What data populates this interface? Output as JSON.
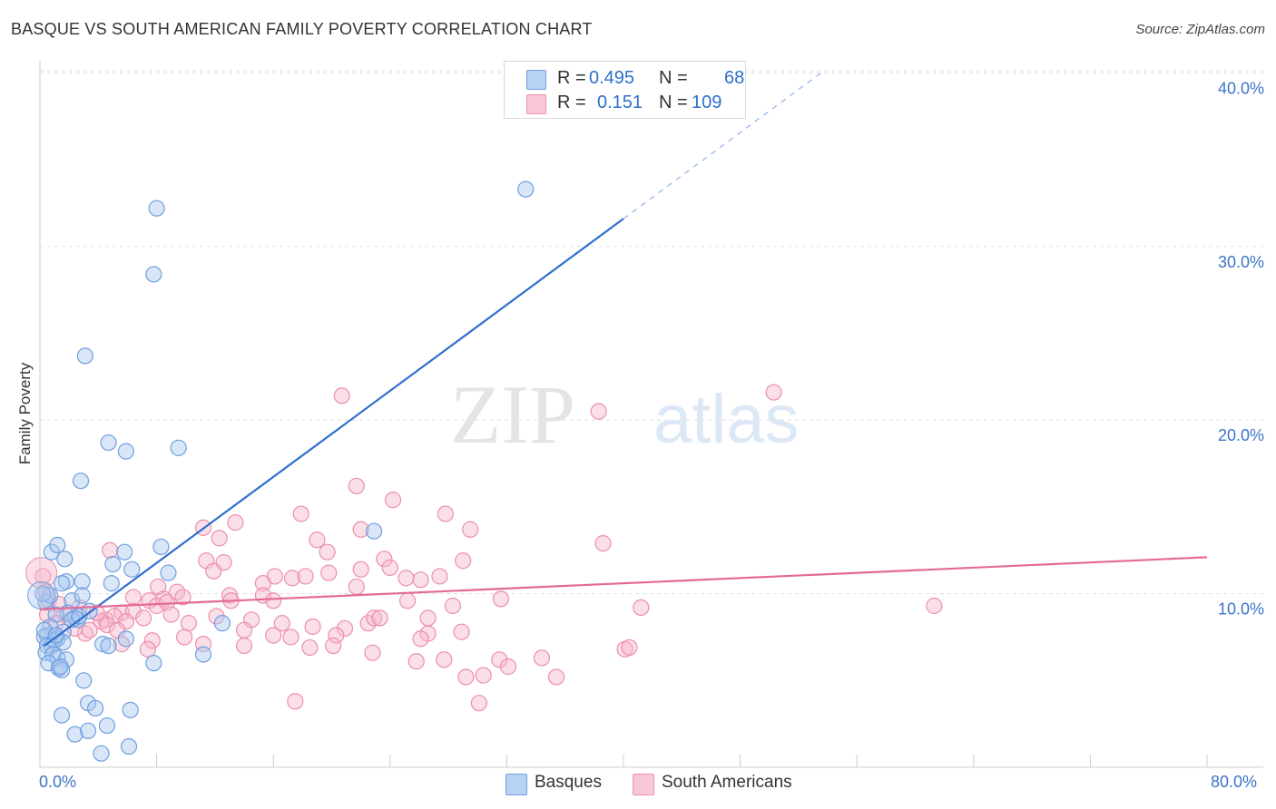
{
  "title": "BASQUE VS SOUTH AMERICAN FAMILY POVERTY CORRELATION CHART",
  "source": "Source: ZipAtlas.com",
  "legend_top": {
    "rows": [
      {
        "r_label": "R =",
        "r_value": "0.495",
        "n_label": "N =",
        "n_value": "68"
      },
      {
        "r_label": "R =",
        "r_value": "0.151",
        "n_label": "N =",
        "n_value": "109"
      }
    ]
  },
  "legend_bottom": {
    "basques": "Basques",
    "south_americans": "South Americans"
  },
  "colors": {
    "basque_fill": "#a9c8f0",
    "basque_stroke": "#6f9fdf",
    "basque_line": "#2f6fcd",
    "sa_fill": "#f6b9cc",
    "sa_stroke": "#ec8fac",
    "sa_line": "#e46a96",
    "tick_text": "#3b74c9",
    "grid": "#dddddd"
  },
  "chart_data": {
    "type": "scatter",
    "title": "BASQUE VS SOUTH AMERICAN FAMILY POVERTY CORRELATION CHART",
    "xlabel": "",
    "ylabel": "Family Poverty",
    "xlim": [
      0,
      80
    ],
    "ylim": [
      0,
      40.7
    ],
    "x_tick_labels": [
      "0.0%",
      "80.0%"
    ],
    "y_ticks": [
      10,
      20,
      30,
      40
    ],
    "y_tick_labels": [
      "10.0%",
      "20.0%",
      "30.0%",
      "40.0%"
    ],
    "watermark": "ZIPatlas",
    "series": [
      {
        "name": "Basques",
        "r": 0.495,
        "n": 68,
        "trend": {
          "x0": 0.3,
          "y0": 7.0,
          "x1": 40,
          "y1": 31.6,
          "dash_to_x": 53.7,
          "dash_to_y": 40.1
        },
        "points": [
          [
            8.0,
            32.2
          ],
          [
            7.8,
            28.4
          ],
          [
            3.1,
            23.7
          ],
          [
            9.5,
            18.4
          ],
          [
            4.7,
            18.7
          ],
          [
            5.9,
            18.2
          ],
          [
            2.8,
            16.5
          ],
          [
            33.3,
            33.3
          ],
          [
            22.9,
            13.6
          ],
          [
            8.3,
            12.7
          ],
          [
            0.8,
            12.4
          ],
          [
            5.8,
            12.4
          ],
          [
            1.2,
            12.8
          ],
          [
            6.3,
            11.4
          ],
          [
            5.0,
            11.7
          ],
          [
            1.7,
            12.0
          ],
          [
            1.8,
            10.7
          ],
          [
            2.9,
            10.7
          ],
          [
            4.9,
            10.6
          ],
          [
            1.5,
            10.6
          ],
          [
            8.8,
            11.2
          ],
          [
            2.2,
            9.6
          ],
          [
            2.9,
            9.9
          ],
          [
            0.4,
            9.5
          ],
          [
            0.7,
            9.9
          ],
          [
            1.9,
            8.9
          ],
          [
            2.4,
            8.6
          ],
          [
            1.1,
            8.8
          ],
          [
            0.7,
            8.1
          ],
          [
            0.5,
            7.6
          ],
          [
            1.6,
            7.8
          ],
          [
            1.2,
            7.4
          ],
          [
            1.0,
            7.3
          ],
          [
            0.3,
            7.5
          ],
          [
            0.5,
            7.0
          ],
          [
            0.8,
            7.0
          ],
          [
            1.6,
            7.2
          ],
          [
            0.4,
            6.6
          ],
          [
            0.9,
            6.5
          ],
          [
            1.2,
            6.3
          ],
          [
            1.8,
            6.2
          ],
          [
            0.6,
            6.0
          ],
          [
            1.3,
            5.7
          ],
          [
            1.5,
            5.6
          ],
          [
            4.3,
            7.1
          ],
          [
            5.9,
            7.4
          ],
          [
            4.7,
            7.0
          ],
          [
            7.8,
            6.0
          ],
          [
            11.2,
            6.5
          ],
          [
            12.5,
            8.3
          ],
          [
            2.6,
            8.5
          ],
          [
            2.2,
            8.5
          ],
          [
            3.0,
            5.0
          ],
          [
            3.3,
            3.7
          ],
          [
            3.8,
            3.4
          ],
          [
            6.2,
            3.3
          ],
          [
            1.5,
            3.0
          ],
          [
            2.4,
            1.9
          ],
          [
            3.3,
            2.1
          ],
          [
            4.6,
            2.4
          ],
          [
            4.2,
            0.8
          ],
          [
            6.1,
            1.2
          ],
          [
            0.3,
            7.9
          ],
          [
            1.1,
            7.6
          ],
          [
            2.7,
            8.7
          ],
          [
            0.2,
            10.0
          ],
          [
            3.4,
            9.0
          ],
          [
            1.4,
            5.8
          ]
        ]
      },
      {
        "name": "South Americans",
        "r": 0.151,
        "n": 109,
        "trend": {
          "x0": 0,
          "y0": 9.1,
          "x1": 80,
          "y1": 12.1
        },
        "points": [
          [
            20.7,
            21.4
          ],
          [
            38.3,
            20.5
          ],
          [
            50.3,
            21.6
          ],
          [
            21.7,
            16.2
          ],
          [
            24.2,
            15.4
          ],
          [
            17.9,
            14.6
          ],
          [
            27.8,
            14.6
          ],
          [
            13.4,
            14.1
          ],
          [
            11.2,
            13.8
          ],
          [
            22.0,
            13.7
          ],
          [
            29.5,
            13.7
          ],
          [
            19.0,
            13.1
          ],
          [
            12.3,
            13.2
          ],
          [
            38.6,
            12.9
          ],
          [
            4.8,
            12.5
          ],
          [
            19.7,
            12.4
          ],
          [
            23.6,
            12.0
          ],
          [
            11.4,
            11.9
          ],
          [
            12.6,
            11.8
          ],
          [
            29.0,
            11.9
          ],
          [
            24.0,
            11.5
          ],
          [
            22.0,
            11.4
          ],
          [
            11.9,
            11.3
          ],
          [
            19.8,
            11.2
          ],
          [
            25.1,
            10.9
          ],
          [
            16.1,
            11.0
          ],
          [
            17.3,
            10.9
          ],
          [
            18.2,
            11.0
          ],
          [
            27.4,
            11.0
          ],
          [
            26.1,
            10.8
          ],
          [
            15.3,
            10.6
          ],
          [
            8.1,
            10.4
          ],
          [
            21.7,
            10.4
          ],
          [
            9.4,
            10.1
          ],
          [
            13.0,
            9.9
          ],
          [
            15.3,
            9.9
          ],
          [
            16.0,
            9.6
          ],
          [
            9.8,
            9.8
          ],
          [
            6.4,
            9.8
          ],
          [
            8.5,
            9.7
          ],
          [
            7.5,
            9.6
          ],
          [
            31.6,
            9.7
          ],
          [
            13.1,
            9.6
          ],
          [
            25.2,
            9.6
          ],
          [
            28.3,
            9.3
          ],
          [
            41.2,
            9.2
          ],
          [
            61.3,
            9.3
          ],
          [
            8.0,
            9.3
          ],
          [
            5.6,
            8.9
          ],
          [
            6.4,
            9.0
          ],
          [
            0.5,
            8.8
          ],
          [
            1.7,
            8.8
          ],
          [
            4.5,
            8.5
          ],
          [
            7.1,
            8.6
          ],
          [
            10.2,
            8.3
          ],
          [
            14.5,
            8.5
          ],
          [
            16.6,
            8.3
          ],
          [
            22.5,
            8.3
          ],
          [
            22.9,
            8.6
          ],
          [
            23.3,
            8.6
          ],
          [
            26.6,
            8.6
          ],
          [
            12.1,
            8.7
          ],
          [
            5.1,
            8.7
          ],
          [
            5.9,
            8.4
          ],
          [
            18.7,
            8.1
          ],
          [
            20.9,
            8.0
          ],
          [
            28.9,
            7.8
          ],
          [
            26.6,
            7.7
          ],
          [
            14.0,
            7.9
          ],
          [
            3.1,
            7.7
          ],
          [
            4.2,
            8.4
          ],
          [
            3.4,
            7.9
          ],
          [
            2.4,
            8.0
          ],
          [
            1.1,
            8.3
          ],
          [
            9.9,
            7.5
          ],
          [
            16.0,
            7.6
          ],
          [
            17.2,
            7.5
          ],
          [
            20.3,
            7.6
          ],
          [
            26.1,
            7.4
          ],
          [
            5.6,
            7.1
          ],
          [
            7.7,
            7.3
          ],
          [
            11.2,
            7.1
          ],
          [
            14.0,
            7.0
          ],
          [
            18.5,
            6.9
          ],
          [
            20.1,
            7.0
          ],
          [
            40.1,
            6.8
          ],
          [
            40.4,
            6.9
          ],
          [
            22.8,
            6.6
          ],
          [
            25.8,
            6.1
          ],
          [
            27.7,
            6.2
          ],
          [
            31.5,
            6.2
          ],
          [
            7.4,
            6.8
          ],
          [
            34.4,
            6.3
          ],
          [
            30.4,
            5.3
          ],
          [
            32.1,
            5.8
          ],
          [
            35.4,
            5.2
          ],
          [
            29.2,
            5.2
          ],
          [
            17.5,
            3.8
          ],
          [
            30.1,
            3.7
          ],
          [
            0.2,
            11.0
          ],
          [
            0.4,
            10.1
          ],
          [
            0.6,
            9.6
          ],
          [
            1.3,
            9.4
          ],
          [
            2.7,
            9.2
          ],
          [
            3.9,
            8.9
          ],
          [
            4.6,
            8.2
          ],
          [
            5.3,
            7.9
          ],
          [
            8.7,
            9.5
          ],
          [
            9.0,
            8.8
          ]
        ]
      }
    ]
  }
}
